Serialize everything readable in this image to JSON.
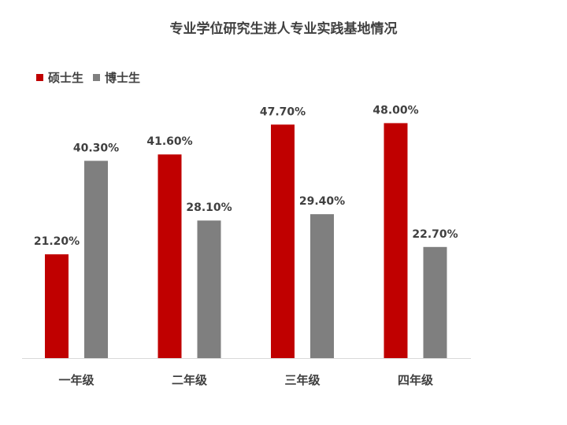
{
  "chart_data": {
    "type": "bar",
    "title": "专业学位研究生进人专业实践基地情况",
    "categories": [
      "一年级",
      "二年级",
      "三年级",
      "四年级"
    ],
    "series": [
      {
        "name": "硕士生",
        "color": "#c00000",
        "values": [
          21.2,
          41.6,
          47.7,
          48.0
        ],
        "labels": [
          "21.20%",
          "41.60%",
          "47.70%",
          "48.00%"
        ]
      },
      {
        "name": "博士生",
        "color": "#7f7f7f",
        "values": [
          40.3,
          28.1,
          29.4,
          22.7
        ],
        "labels": [
          "40.30%",
          "28.10%",
          "29.40%",
          "22.70%"
        ]
      }
    ],
    "ylim": [
      0,
      55
    ],
    "legend_position": "top-left",
    "grid": false
  }
}
